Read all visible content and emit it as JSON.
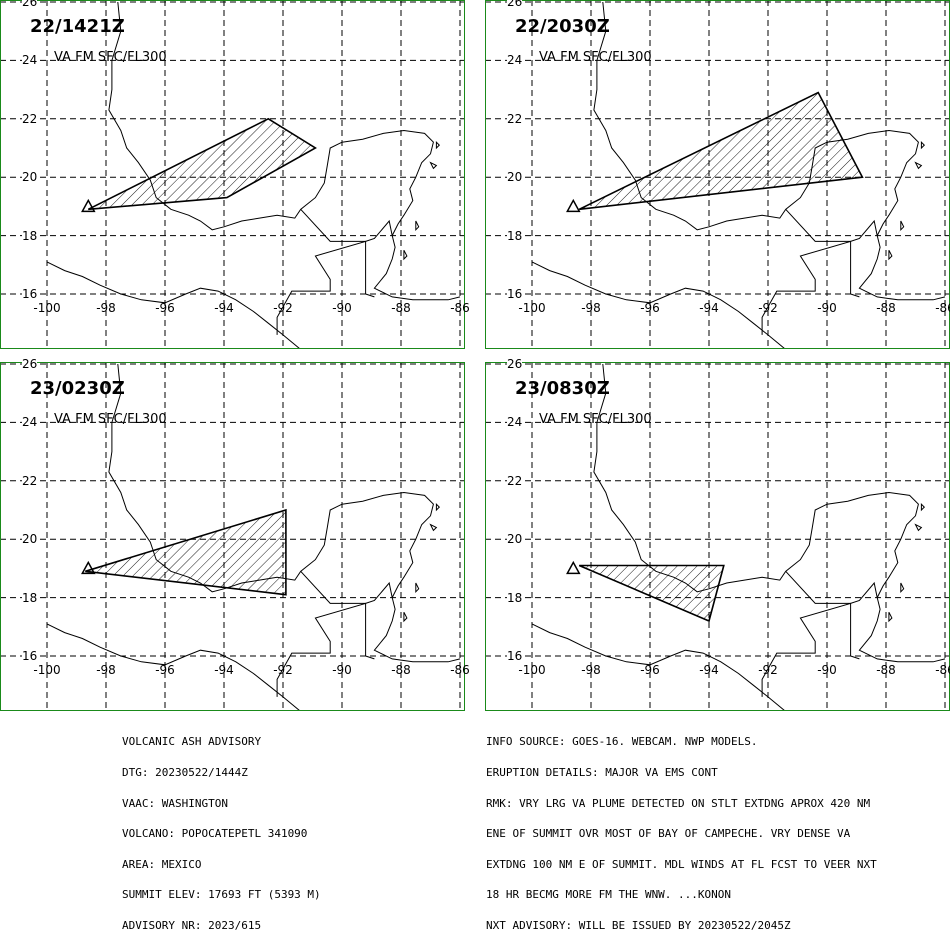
{
  "map": {
    "lon_labels": [
      "-100",
      "-98",
      "-96",
      "-94",
      "-92",
      "-90",
      "-88",
      "-86"
    ],
    "lon_values": [
      -100,
      -98,
      -96,
      -94,
      -92,
      -90,
      -88,
      -86
    ],
    "lat_labels": [
      "26",
      "24",
      "22",
      "20",
      "18",
      "16"
    ],
    "lat_values": [
      26,
      24,
      22,
      20,
      18,
      16
    ],
    "volcano_lon_lat": [
      -98.6,
      19.0
    ],
    "frame_color": "#1a8a1a",
    "grid_style": "dashed"
  },
  "panels": [
    {
      "time": "22/1421Z",
      "level": "VA FM SFC/FL300",
      "polygon_lon_lat": [
        [
          -98.6,
          18.9
        ],
        [
          -92.5,
          22.0
        ],
        [
          -90.9,
          21.0
        ],
        [
          -93.9,
          19.3
        ],
        [
          -98.6,
          18.9
        ]
      ]
    },
    {
      "time": "22/2030Z",
      "level": "VA FM SFC/FL300",
      "polygon_lon_lat": [
        [
          -98.4,
          18.9
        ],
        [
          -90.3,
          22.9
        ],
        [
          -88.8,
          20.0
        ],
        [
          -98.4,
          18.9
        ]
      ]
    },
    {
      "time": "23/0230Z",
      "level": "VA FM SFC/FL300",
      "polygon_lon_lat": [
        [
          -98.7,
          18.9
        ],
        [
          -91.9,
          21.0
        ],
        [
          -91.9,
          18.1
        ],
        [
          -98.7,
          18.9
        ]
      ]
    },
    {
      "time": "23/0830Z",
      "level": "VA FM SFC/FL300",
      "polygon_lon_lat": [
        [
          -98.4,
          19.1
        ],
        [
          -93.5,
          19.1
        ],
        [
          -94.0,
          17.2
        ],
        [
          -98.4,
          19.1
        ]
      ]
    }
  ],
  "advisory_left": [
    "VOLCANIC ASH ADVISORY",
    "DTG: 20230522/1444Z",
    "VAAC: WASHINGTON",
    "VOLCANO: POPOCATEPETL 341090",
    "AREA: MEXICO",
    "SUMMIT ELEV: 17693 FT (5393 M)",
    "ADVISORY NR: 2023/615"
  ],
  "advisory_right": [
    "INFO SOURCE: GOES-16. WEBCAM. NWP MODELS.",
    "ERUPTION DETAILS: MAJOR VA EMS CONT",
    "RMK: VRY LRG VA PLUME DETECTED ON STLT EXTDNG APROX 420 NM",
    "ENE OF SUMMIT OVR MOST OF BAY OF CAMPECHE. VRY DENSE VA",
    "EXTDNG 100 NM E OF SUMMIT. MDL WINDS AT FL FCST TO VEER NXT",
    "18 HR BECMG MORE FM THE WNW. ...KONON",
    "NXT ADVISORY: WILL BE ISSUED BY 20230522/2045Z"
  ]
}
